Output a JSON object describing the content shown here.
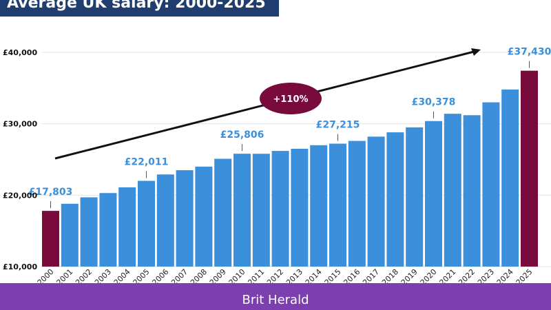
{
  "title": "Average UK salary: 2000-2025",
  "footer": "Brit Herald",
  "colors": {
    "title_bg": "#1f3d6e",
    "bar": "#3b8fdb",
    "highlight_bar": "#780a3c",
    "label": "#3b8fdb",
    "badge": "#780a3c",
    "footer_bg": "#7b3fb0"
  },
  "chart_data": {
    "type": "bar",
    "title": "Average UK salary: 2000-2025",
    "xlabel": "",
    "ylabel": "",
    "ylim": [
      10000,
      40000
    ],
    "yticks": [
      10000,
      20000,
      30000,
      40000
    ],
    "ytick_labels": [
      "£10,000",
      "£20,000",
      "£30,000",
      "£40,000"
    ],
    "grid": true,
    "categories": [
      "2000",
      "2001",
      "2002",
      "2003",
      "2004",
      "2005",
      "2006",
      "2007",
      "2008",
      "2009",
      "2010",
      "2011",
      "2012",
      "2013",
      "2014",
      "2015",
      "2016",
      "2017",
      "2018",
      "2019",
      "2020",
      "2021",
      "2022",
      "2023",
      "2024",
      "2025"
    ],
    "values": [
      17803,
      18800,
      19700,
      20300,
      21100,
      22011,
      22900,
      23500,
      24000,
      25100,
      25806,
      25800,
      26200,
      26500,
      27000,
      27215,
      27600,
      28200,
      28800,
      29500,
      30378,
      31400,
      31200,
      33000,
      34800,
      37430
    ],
    "highlighted": [
      "2000",
      "2025"
    ],
    "data_labels": [
      {
        "category": "2000",
        "text": "£17,803"
      },
      {
        "category": "2005",
        "text": "£22,011"
      },
      {
        "category": "2010",
        "text": "£25,806"
      },
      {
        "category": "2015",
        "text": "£27,215"
      },
      {
        "category": "2020",
        "text": "£30,378"
      },
      {
        "category": "2025",
        "text": "£37,430"
      }
    ],
    "annotation": {
      "text": "+110%"
    }
  }
}
